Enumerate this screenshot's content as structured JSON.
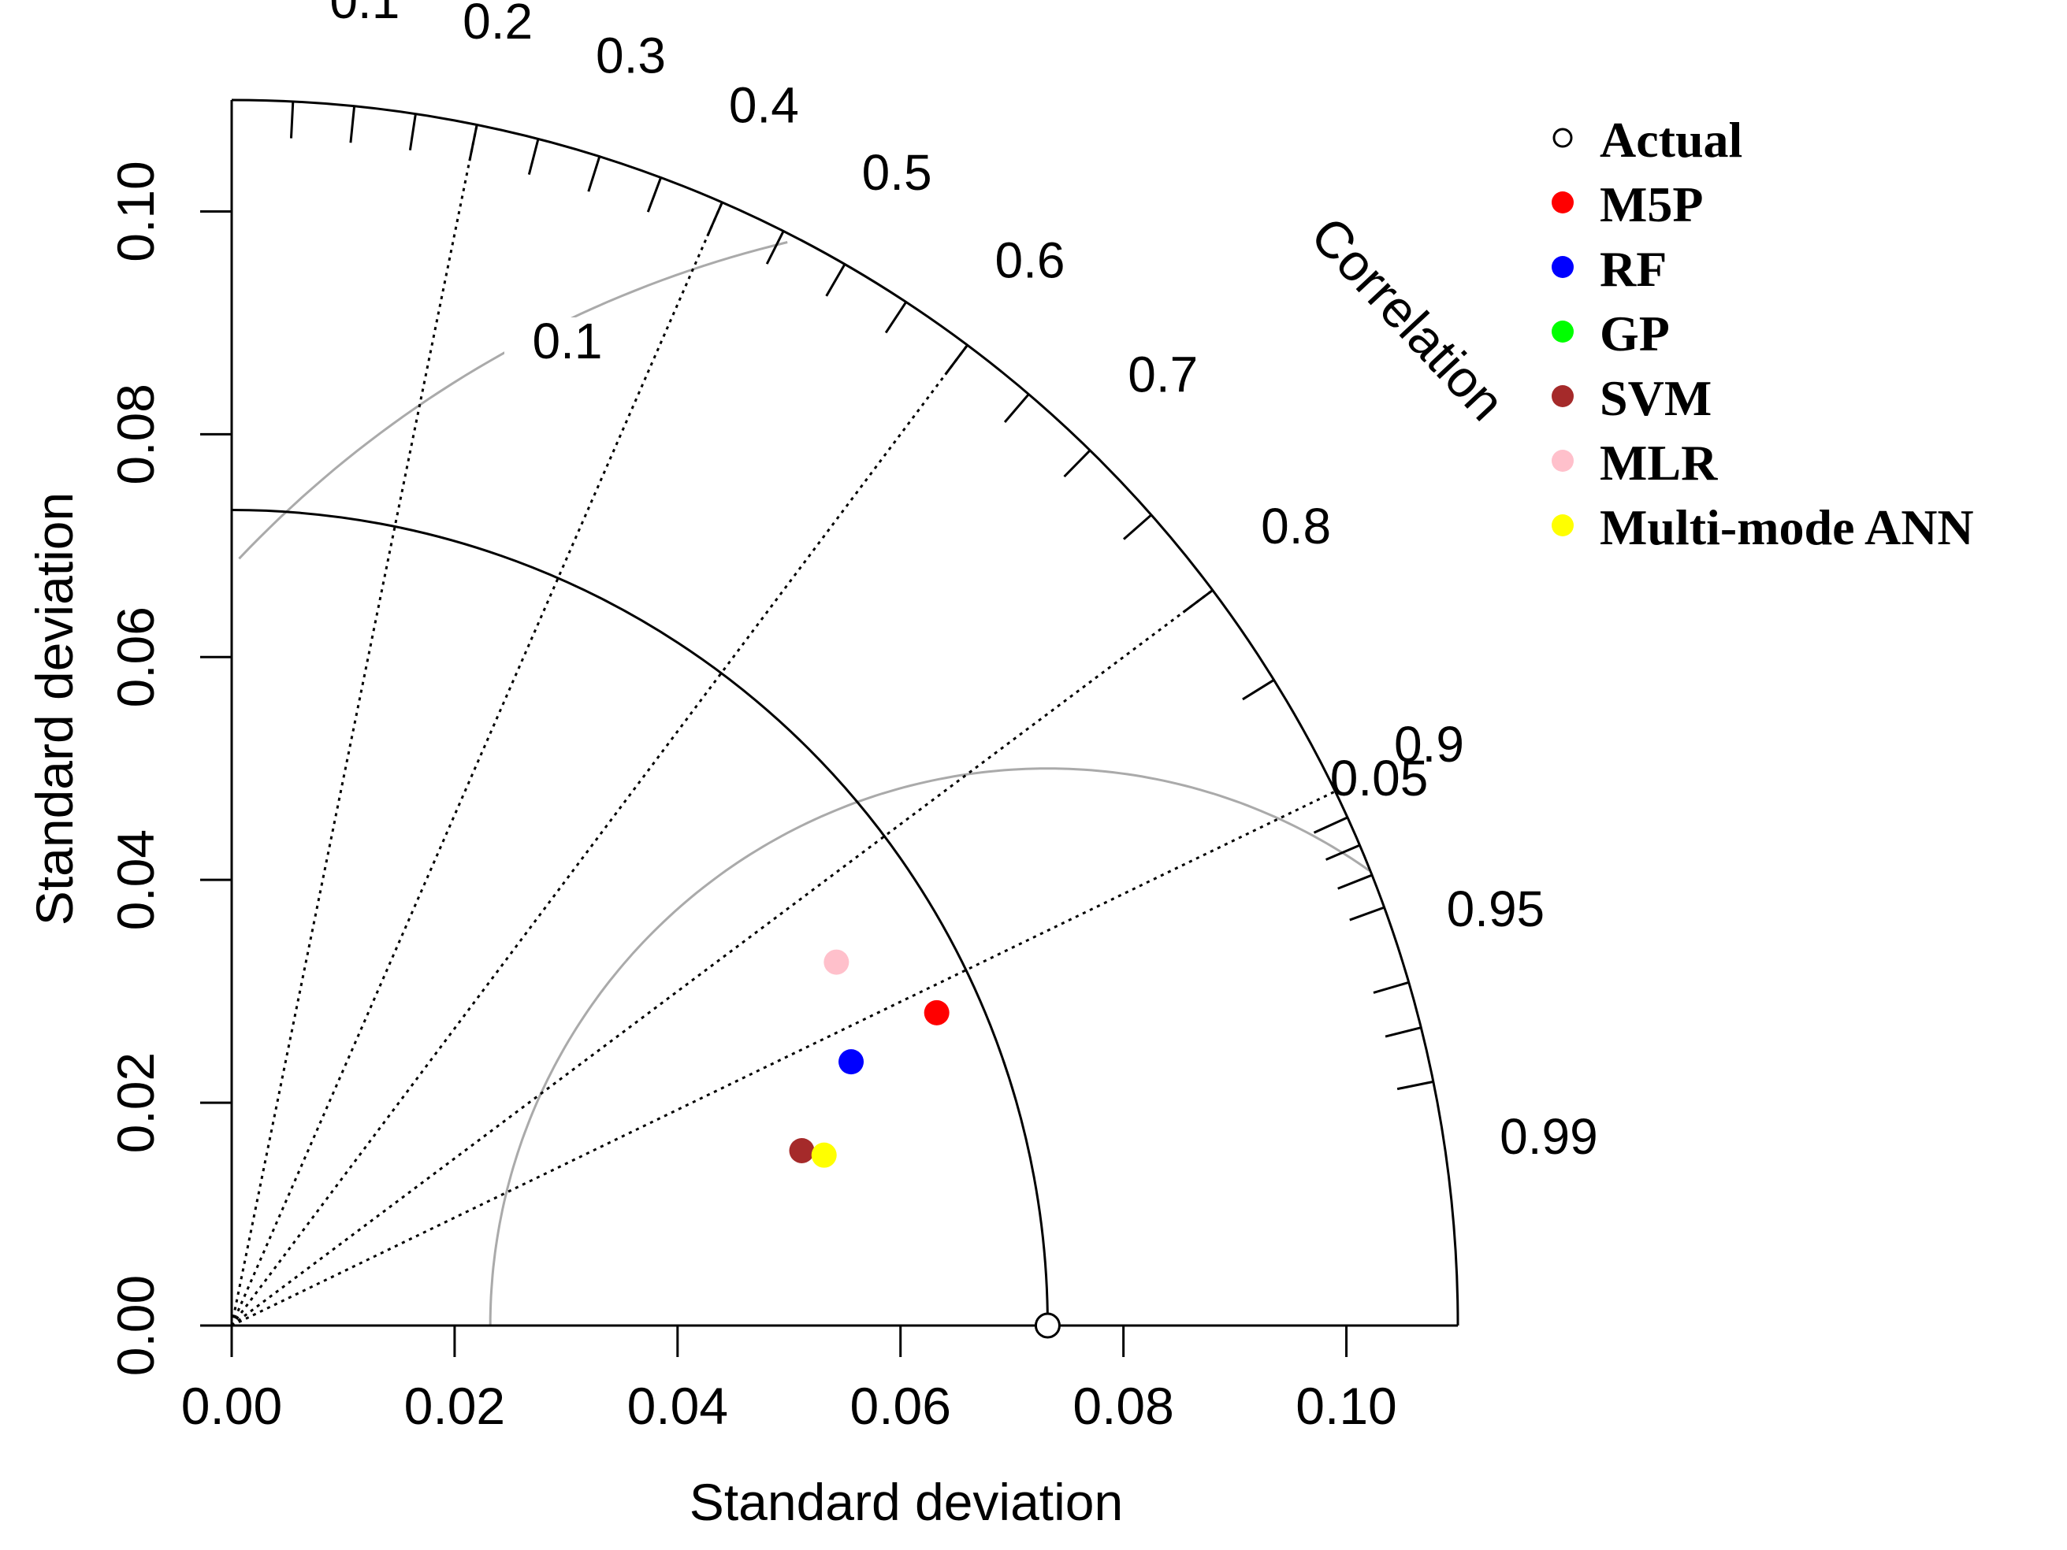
{
  "chart_data": {
    "type": "taylor-diagram",
    "title": "",
    "xlabel": "Standard deviation",
    "ylabel": "Standard deviation",
    "arc_title": "Correlation",
    "sd_range": [
      0,
      0.11
    ],
    "sd_ticks": [
      0.0,
      0.02,
      0.04,
      0.06,
      0.08,
      0.1
    ],
    "x_tick_labels": [
      "0.00",
      "0.02",
      "0.04",
      "0.06",
      "0.08",
      "0.10"
    ],
    "y_tick_labels": [
      "0.00",
      "0.02",
      "0.04",
      "0.06",
      "0.08",
      "0.10"
    ],
    "correlation_labels": [
      "0.1",
      "0.2",
      "0.3",
      "0.4",
      "0.5",
      "0.6",
      "0.7",
      "0.8",
      "0.9",
      "0.95",
      "0.99"
    ],
    "correlation_lines": [
      0.2,
      0.4,
      0.6,
      0.8,
      0.9
    ],
    "reference_sd": 0.0732,
    "rms_contours": [
      {
        "value": 0.05,
        "label": "0.05"
      },
      {
        "value": 0.1,
        "label": "0.1"
      }
    ],
    "series": [
      {
        "name": "Actual",
        "sd": 0.0732,
        "corr": 1.0,
        "color": "#000000",
        "marker": "open-circle"
      },
      {
        "name": "M5P",
        "sd": 0.0692,
        "corr": 0.914,
        "color": "#ff0000",
        "marker": "dot"
      },
      {
        "name": "RF",
        "sd": 0.0604,
        "corr": 0.92,
        "color": "#0000ff",
        "marker": "dot"
      },
      {
        "name": "GP",
        "sd": null,
        "corr": null,
        "color": "#00ff00",
        "marker": "dot"
      },
      {
        "name": "SVM",
        "sd": 0.0535,
        "corr": 0.956,
        "color": "#a52a2a",
        "marker": "dot"
      },
      {
        "name": "MLR",
        "sd": 0.0633,
        "corr": 0.857,
        "color": "#ffc0cb",
        "marker": "dot"
      },
      {
        "name": "Multi-mode ANN",
        "sd": 0.0553,
        "corr": 0.961,
        "color": "#ffff00",
        "marker": "dot"
      }
    ],
    "legend_position": "top-right"
  }
}
